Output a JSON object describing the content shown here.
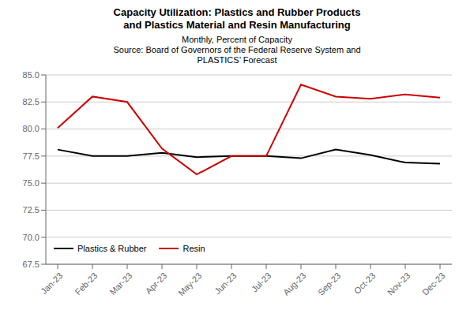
{
  "chart_data": {
    "type": "line",
    "title": [
      "Capacity Utilization:  Plastics and Rubber Products",
      "and Plastics Material and Resin Manufacturing"
    ],
    "subtitle": [
      "Monthly,  Percent of Capacity",
      "Source: Board of Governors of the Federal Reserve System and",
      "PLASTICS’ Forecast"
    ],
    "categories": [
      "Jan-23",
      "Feb-23",
      "Mar-23",
      "Apr-23",
      "May-23",
      "Jun-23",
      "Jul-23",
      "Aug-23",
      "Sep-23",
      "Oct-23",
      "Nov-23",
      "Dec-23"
    ],
    "series": [
      {
        "name": "Plastics & Rubber",
        "color": "#000000",
        "values": [
          78.1,
          77.5,
          77.5,
          77.8,
          77.4,
          77.5,
          77.5,
          77.3,
          78.1,
          77.6,
          76.9,
          76.8
        ]
      },
      {
        "name": "Resin",
        "color": "#cc0000",
        "values": [
          80.1,
          83.0,
          82.5,
          78.2,
          75.8,
          77.5,
          77.5,
          84.1,
          83.0,
          82.8,
          83.2,
          82.9
        ]
      }
    ],
    "ylim": [
      67.5,
      85.0
    ],
    "yticks": [
      67.5,
      {
        "value": 70,
        "label": "70.0"
      },
      72.5,
      {
        "value": 75,
        "label": "75.0"
      },
      77.5,
      {
        "value": 80,
        "label": "80.0"
      },
      82.5,
      {
        "value": 85,
        "label": "85.0"
      }
    ],
    "grid": "y",
    "legend": "lower left"
  }
}
